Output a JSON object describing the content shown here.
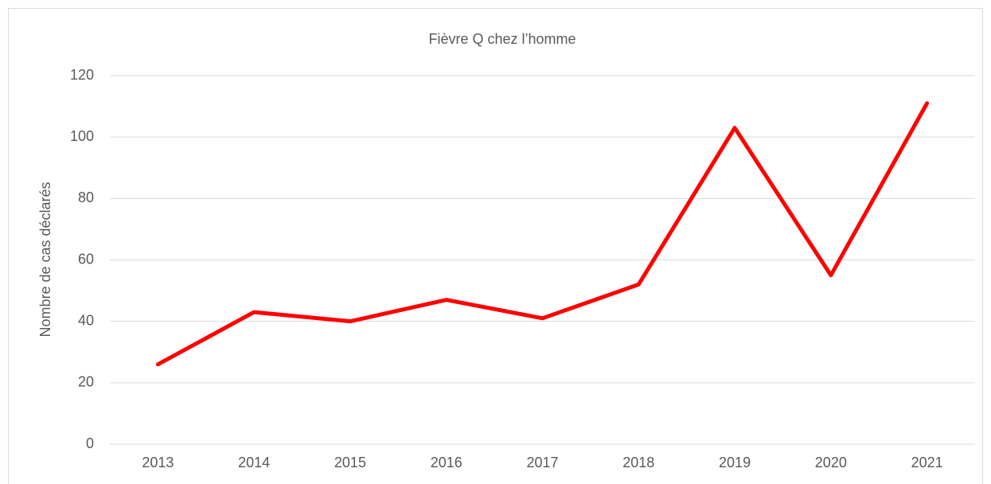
{
  "chart_data": {
    "type": "line",
    "title": "Fièvre Q chez l’homme",
    "y_label": "Nombre de cas déclarés",
    "categories": [
      "2013",
      "2014",
      "2015",
      "2016",
      "2017",
      "2018",
      "2019",
      "2020",
      "2021"
    ],
    "series": [
      {
        "color": "#ff0000",
        "values": [
          26,
          43,
          40,
          47,
          41,
          52,
          103,
          55,
          111
        ]
      }
    ],
    "ylim": [
      0,
      120
    ],
    "yticks": [
      0,
      20,
      40,
      60,
      80,
      100,
      120
    ],
    "grid": true
  }
}
